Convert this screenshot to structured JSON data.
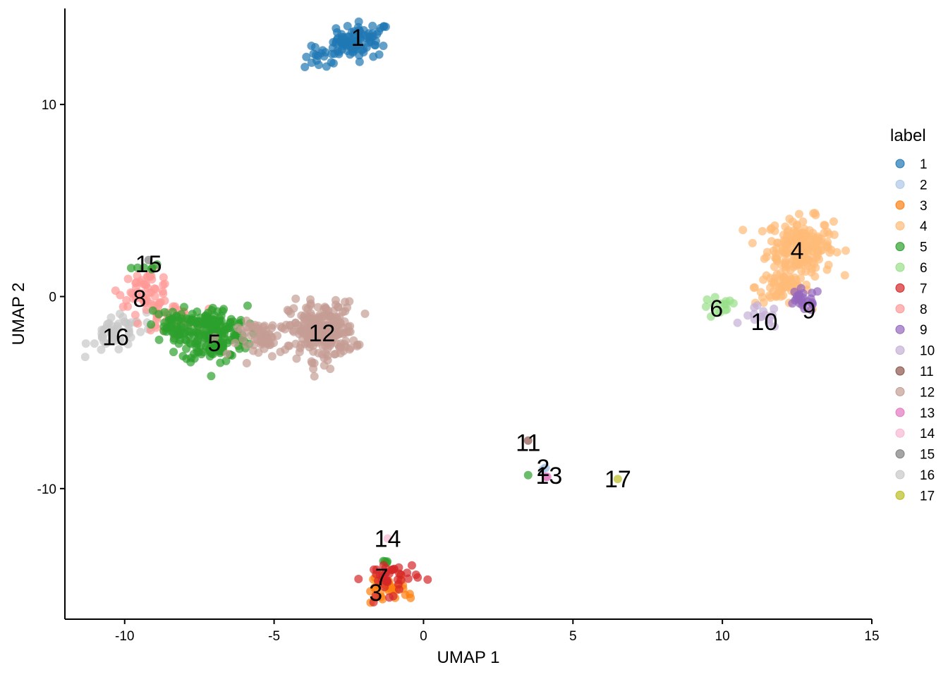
{
  "chart_data": {
    "type": "scatter",
    "xlabel": "UMAP 1",
    "ylabel": "UMAP 2",
    "xlim": [
      -12.0,
      15.0
    ],
    "ylim": [
      -16.8,
      15.0
    ],
    "xticks": [
      -10,
      -5,
      0,
      5,
      10,
      15
    ],
    "yticks": [
      -10,
      0,
      10
    ],
    "grid": false,
    "legend": {
      "title": "label",
      "position": "right"
    },
    "series": [
      {
        "name": "1",
        "color": "#1f77b4",
        "label_pos": [
          -2.2,
          13.5
        ],
        "centers": [
          {
            "x": -2.0,
            "y": 13.4,
            "n": 60
          },
          {
            "x": -2.7,
            "y": 13.0,
            "n": 30
          },
          {
            "x": -3.4,
            "y": 12.4,
            "n": 18
          }
        ]
      },
      {
        "name": "2",
        "color": "#aec7e8",
        "label_pos": [
          4.0,
          -8.9
        ],
        "centers": [
          {
            "x": 4.0,
            "y": -8.9,
            "n": 3
          }
        ]
      },
      {
        "name": "3",
        "color": "#ff7f0e",
        "label_pos": [
          -1.6,
          -15.4
        ],
        "centers": [
          {
            "x": -1.5,
            "y": -15.3,
            "n": 18
          },
          {
            "x": -0.7,
            "y": -15.2,
            "n": 14
          }
        ]
      },
      {
        "name": "4",
        "color": "#ffbb78",
        "label_pos": [
          12.5,
          2.4
        ],
        "centers": [
          {
            "x": 12.6,
            "y": 2.6,
            "n": 200
          },
          {
            "x": 12.0,
            "y": 0.5,
            "n": 60
          }
        ]
      },
      {
        "name": "5",
        "color": "#2ca02c",
        "label_pos": [
          -7.0,
          -2.4
        ],
        "centers": [
          {
            "x": -7.0,
            "y": -2.0,
            "n": 180
          },
          {
            "x": -8.3,
            "y": -1.6,
            "n": 60
          },
          {
            "x": -9.2,
            "y": 1.5,
            "n": 6
          },
          {
            "x": 3.5,
            "y": -9.3,
            "n": 1
          },
          {
            "x": -1.3,
            "y": -13.8,
            "n": 4
          }
        ]
      },
      {
        "name": "6",
        "color": "#98df8a",
        "label_pos": [
          9.8,
          -0.6
        ],
        "centers": [
          {
            "x": 9.9,
            "y": -0.6,
            "n": 15
          }
        ]
      },
      {
        "name": "7",
        "color": "#d62728",
        "label_pos": [
          -1.4,
          -14.6
        ],
        "centers": [
          {
            "x": -1.1,
            "y": -14.6,
            "n": 40
          }
        ]
      },
      {
        "name": "8",
        "color": "#ff9896",
        "label_pos": [
          -9.5,
          -0.1
        ],
        "centers": [
          {
            "x": -9.3,
            "y": 0.4,
            "n": 50
          },
          {
            "x": -8.6,
            "y": -1.0,
            "n": 40
          }
        ]
      },
      {
        "name": "9",
        "color": "#9467bd",
        "label_pos": [
          12.9,
          -0.7
        ],
        "centers": [
          {
            "x": 12.7,
            "y": -0.2,
            "n": 25
          }
        ]
      },
      {
        "name": "10",
        "color": "#c5b0d5",
        "label_pos": [
          11.4,
          -1.3
        ],
        "centers": [
          {
            "x": 11.3,
            "y": -1.1,
            "n": 15
          }
        ]
      },
      {
        "name": "11",
        "color": "#8c564b",
        "label_pos": [
          3.5,
          -7.6
        ],
        "centers": [
          {
            "x": 3.5,
            "y": -7.5,
            "n": 1
          }
        ]
      },
      {
        "name": "12",
        "color": "#c49c94",
        "label_pos": [
          -3.4,
          -1.9
        ],
        "centers": [
          {
            "x": -3.4,
            "y": -1.8,
            "n": 220
          },
          {
            "x": -5.3,
            "y": -2.2,
            "n": 60
          }
        ]
      },
      {
        "name": "13",
        "color": "#e377c2",
        "label_pos": [
          4.2,
          -9.3
        ],
        "centers": [
          {
            "x": 4.2,
            "y": -9.3,
            "n": 2
          }
        ]
      },
      {
        "name": "14",
        "color": "#f7b6d2",
        "label_pos": [
          -1.2,
          -12.6
        ],
        "centers": [
          {
            "x": -1.2,
            "y": -12.6,
            "n": 1
          }
        ]
      },
      {
        "name": "15",
        "color": "#7f7f7f",
        "label_pos": [
          -9.2,
          1.7
        ],
        "centers": [
          {
            "x": -9.2,
            "y": 1.9,
            "n": 1
          }
        ]
      },
      {
        "name": "16",
        "color": "#c7c7c7",
        "label_pos": [
          -10.3,
          -2.1
        ],
        "centers": [
          {
            "x": -10.3,
            "y": -2.0,
            "n": 40
          },
          {
            "x": -9.6,
            "y": -1.4,
            "n": 10
          }
        ]
      },
      {
        "name": "17",
        "color": "#bcbd22",
        "label_pos": [
          6.5,
          -9.5
        ],
        "centers": [
          {
            "x": 6.5,
            "y": -9.5,
            "n": 1
          }
        ]
      }
    ]
  }
}
